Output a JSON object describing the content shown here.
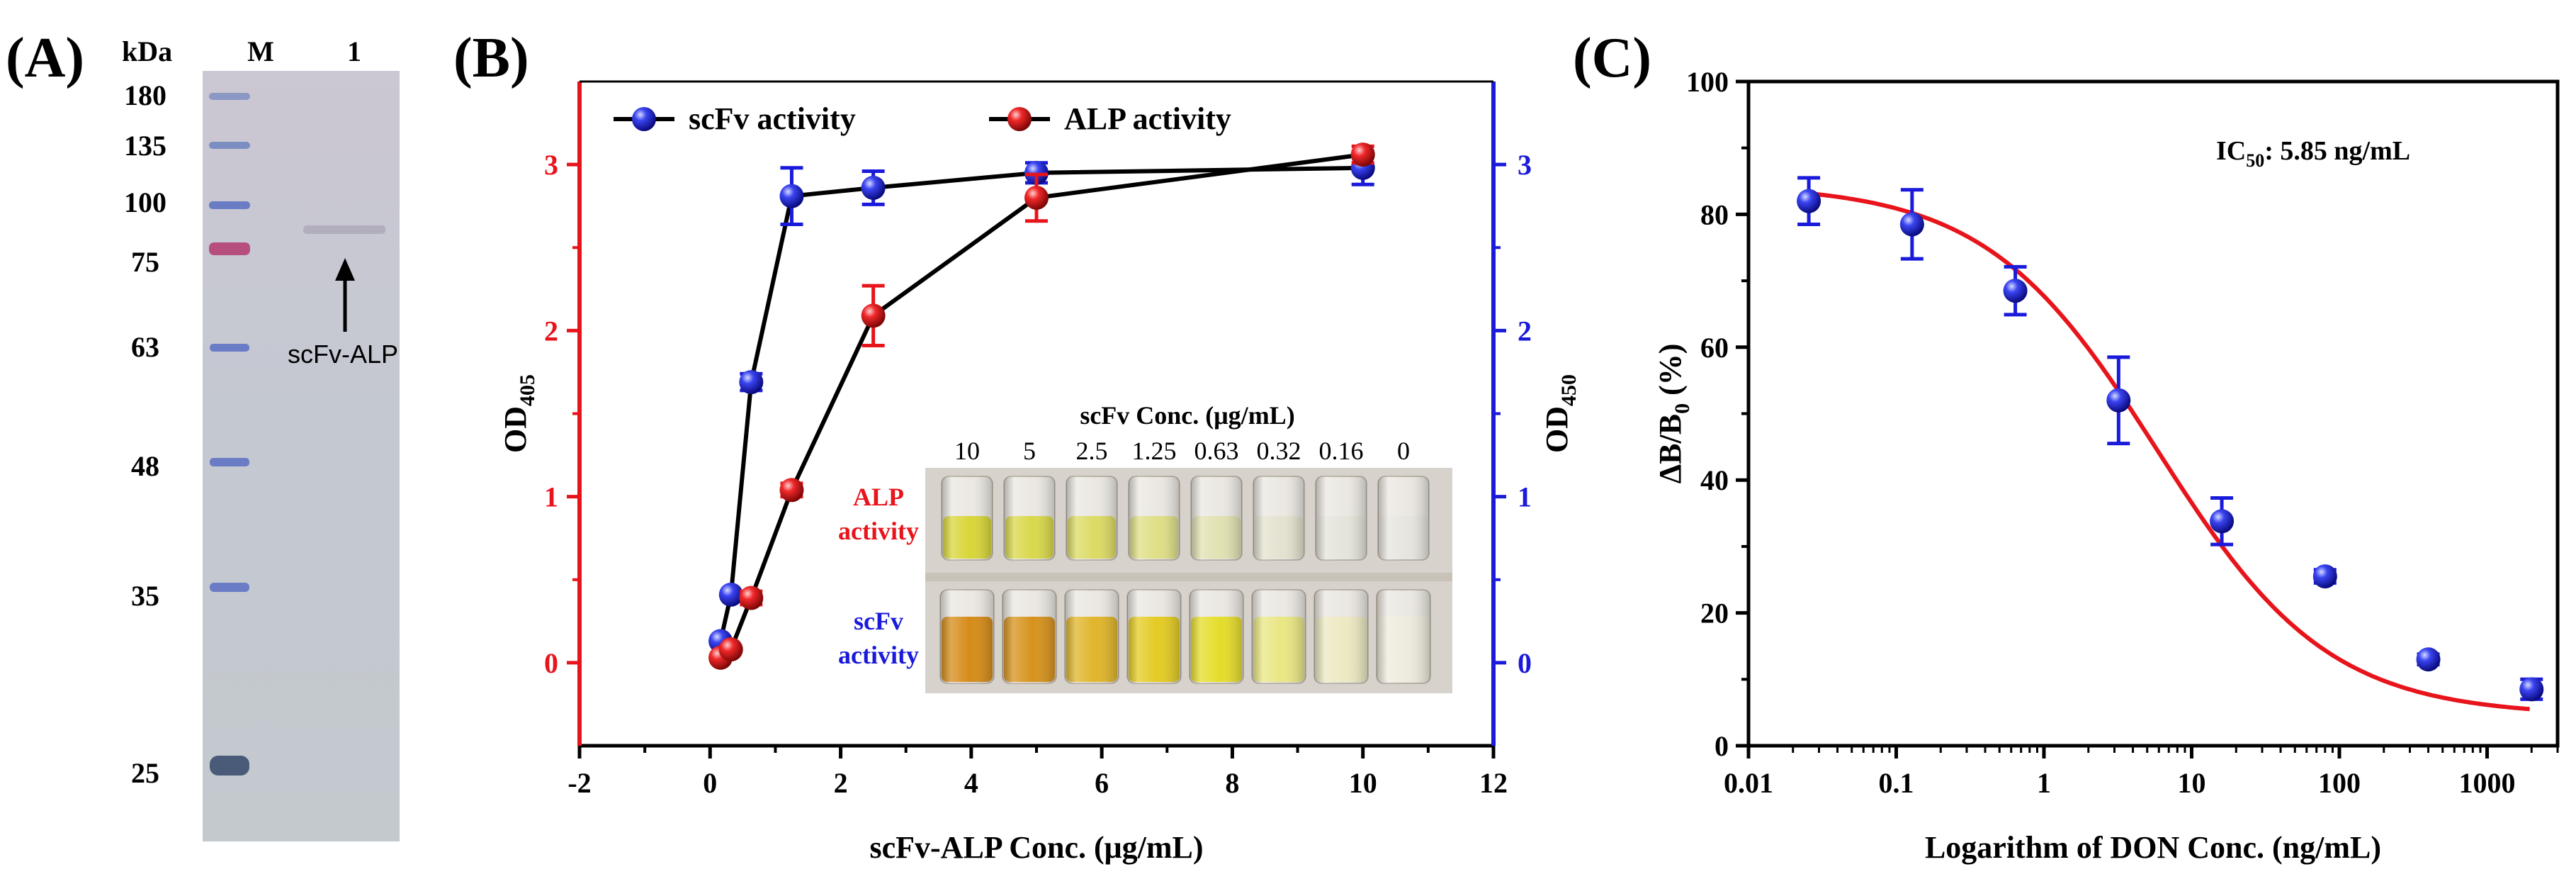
{
  "panels": {
    "a": {
      "label": "(A)",
      "unit_label": "kDa",
      "lane_labels": [
        "M",
        "1"
      ],
      "markers": [
        "180",
        "135",
        "100",
        "75",
        "63",
        "48",
        "35",
        "25"
      ],
      "band_annotation": "scFv-ALP"
    },
    "b": {
      "label": "(B)",
      "inset": {
        "title": "scFv Conc. (μg/mL)",
        "concentrations": [
          "10",
          "5",
          "2.5",
          "1.25",
          "0.63",
          "0.32",
          "0.16",
          "0"
        ],
        "row1_label": [
          "ALP",
          "activity"
        ],
        "row2_label": [
          "scFv",
          "activity"
        ]
      }
    },
    "c": {
      "label": "(C)",
      "ic50_label": "IC",
      "ic50_sub": "50",
      "ic50_value": ": 5.85 ng/mL"
    }
  },
  "chart_data": [
    {
      "id": "panel-b",
      "type": "line",
      "title": "",
      "xlabel": "scFv-ALP Conc. (μg/mL)",
      "ylabel_left": "OD",
      "ylabel_left_sub": "405",
      "ylabel_right": "OD",
      "ylabel_right_sub": "450",
      "xlim": [
        -2,
        12
      ],
      "ylim": [
        -0.5,
        3.5
      ],
      "xticks": [
        -2,
        0,
        2,
        4,
        6,
        8,
        10,
        12
      ],
      "yticks": [
        0,
        1,
        2,
        3
      ],
      "legend_position": "top-left",
      "colors": {
        "left_axis": "#e8141b",
        "right_axis": "#1a1adb"
      },
      "series": [
        {
          "name": "scFv activity",
          "color": "#1a1adb",
          "axis": "right",
          "x": [
            0.16,
            0.32,
            0.63,
            1.25,
            2.5,
            5,
            10
          ],
          "y": [
            0.13,
            0.41,
            1.69,
            2.81,
            2.86,
            2.95,
            2.98
          ],
          "err": [
            0,
            0,
            0.05,
            0.17,
            0.1,
            0.06,
            0.1
          ]
        },
        {
          "name": "ALP activity",
          "color": "#e8141b",
          "axis": "left",
          "x": [
            0.16,
            0.32,
            0.63,
            1.25,
            2.5,
            5,
            10
          ],
          "y": [
            0.03,
            0.08,
            0.39,
            1.04,
            2.09,
            2.8,
            3.06
          ],
          "err": [
            0,
            0,
            0.04,
            0.04,
            0.18,
            0.14,
            0.05
          ]
        }
      ]
    },
    {
      "id": "panel-c",
      "type": "scatter",
      "title": "",
      "xlabel": "Logarithm of DON Conc. (ng/mL)",
      "ylabel": "ΔB/B",
      "ylabel_sub": "0",
      "ylabel_suffix": " (%)",
      "xscale": "log",
      "xlim": [
        0.01,
        3000
      ],
      "ylim": [
        0,
        100
      ],
      "xticks": [
        0.01,
        0.1,
        1,
        10,
        100,
        1000
      ],
      "xtick_labels": [
        "0.01",
        "0.1",
        "1",
        "10",
        "100",
        "1000"
      ],
      "yticks": [
        0,
        20,
        40,
        60,
        80,
        100
      ],
      "colors": {
        "points": "#1a1adb",
        "fit": "#e8141b"
      },
      "series": [
        {
          "name": "data",
          "x": [
            0.0256,
            0.128,
            0.64,
            3.2,
            16,
            80,
            400,
            2000
          ],
          "y": [
            82,
            78.5,
            68.5,
            52,
            33.8,
            25.5,
            13,
            8.5
          ],
          "err": [
            3.5,
            5.2,
            3.6,
            6.5,
            3.5,
            1,
            0.8,
            1.5
          ]
        }
      ],
      "fit": {
        "model": "4PL",
        "top": 84.5,
        "bottom": 4.5,
        "ic50": 5.85,
        "hill": 0.75
      }
    }
  ]
}
